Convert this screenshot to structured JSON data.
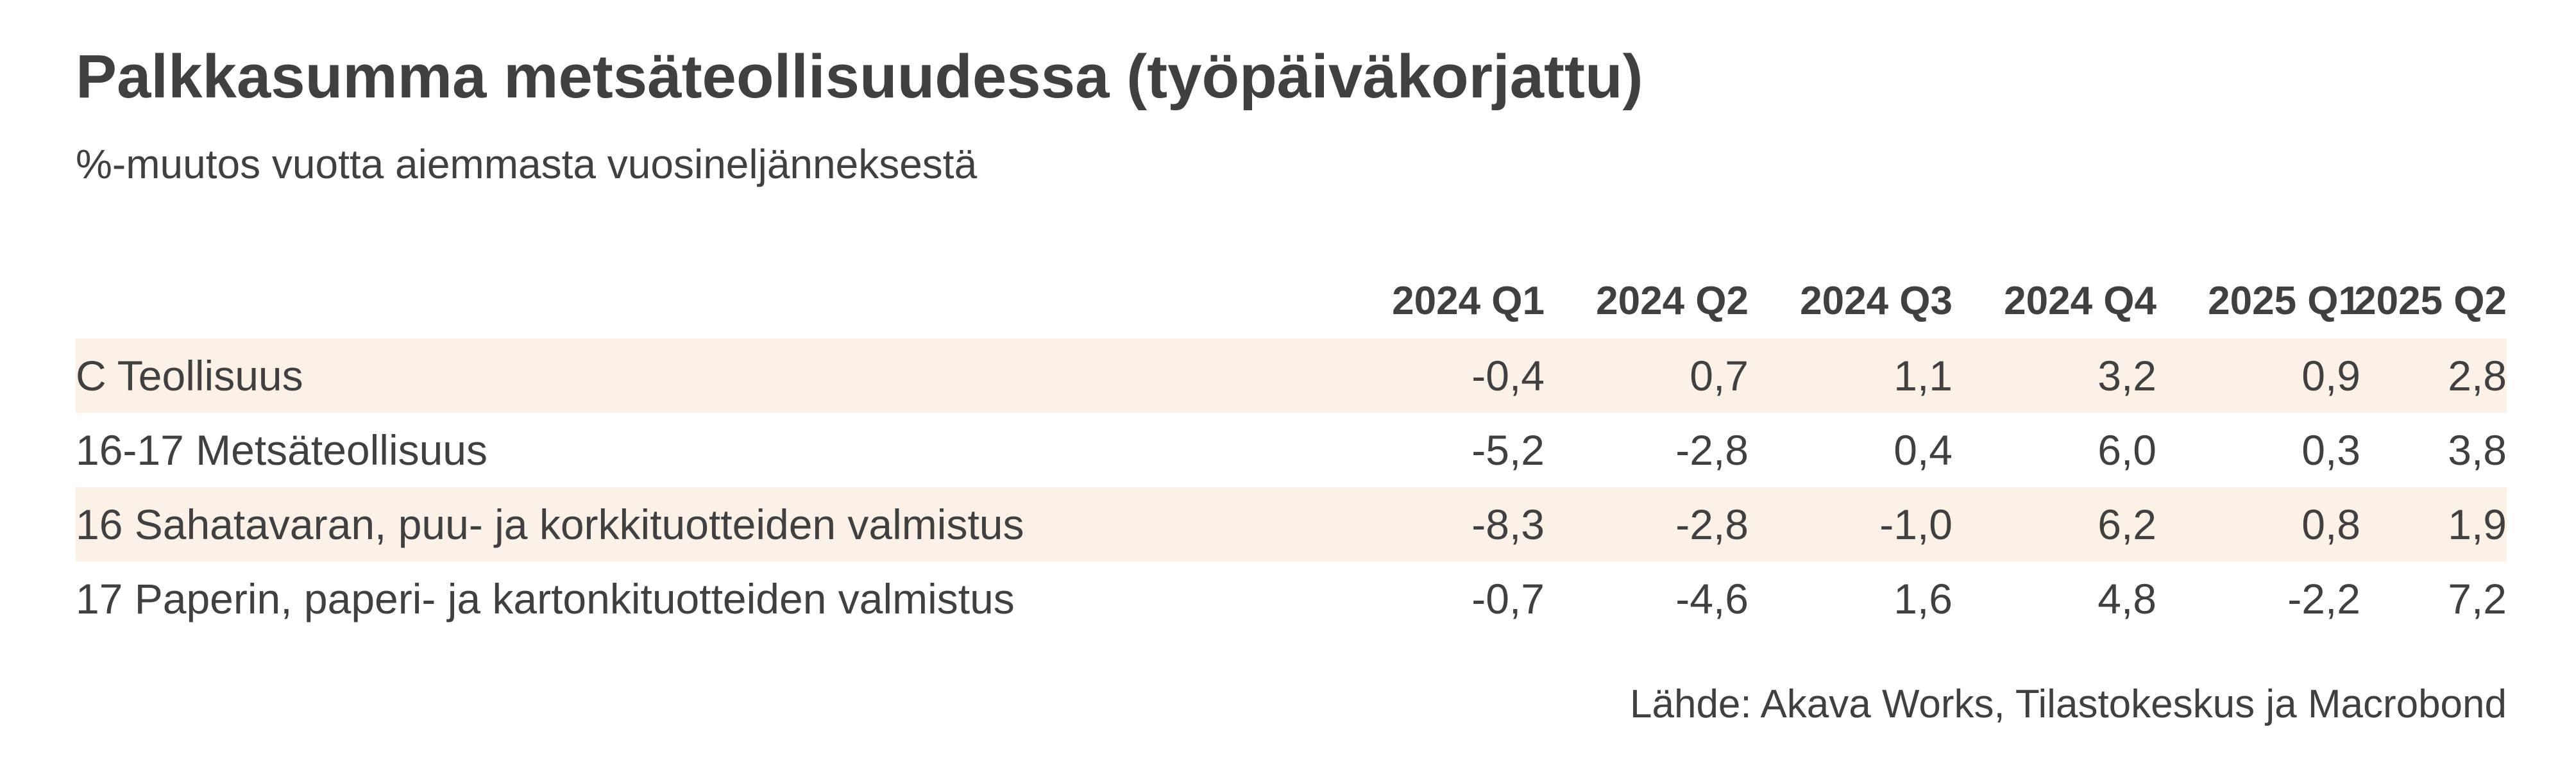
{
  "chart_data": {
    "type": "table",
    "title": "Palkkasumma metsäteollisuudessa (työpäiväkorjattu)",
    "subtitle": "%-muutos vuotta aiemmasta vuosineljänneksestä",
    "columns": [
      "2024 Q1",
      "2024 Q2",
      "2024 Q3",
      "2024 Q4",
      "2025 Q1",
      "2025 Q2"
    ],
    "rows": [
      {
        "label": "C Teollisuus",
        "values": [
          "-0,4",
          "0,7",
          "1,1",
          "3,2",
          "0,9",
          "2,8"
        ]
      },
      {
        "label": "16-17 Metsäteollisuus",
        "values": [
          "-5,2",
          "-2,8",
          "0,4",
          "6,0",
          "0,3",
          "3,8"
        ]
      },
      {
        "label": "16 Sahatavaran, puu- ja korkkituotteiden valmistus",
        "values": [
          "-8,3",
          "-2,8",
          "-1,0",
          "6,2",
          "0,8",
          "1,9"
        ]
      },
      {
        "label": "17 Paperin, paperi- ja kartonkituotteiden valmistus",
        "values": [
          "-0,7",
          "-4,6",
          "1,6",
          "4,8",
          "-2,2",
          "7,2"
        ]
      }
    ],
    "source": "Lähde: Akava Works, Tilastokeskus ja Macrobond"
  },
  "colors": {
    "text": "#404040",
    "row_shading": "#fcf1e6",
    "background": "#ffffff"
  }
}
